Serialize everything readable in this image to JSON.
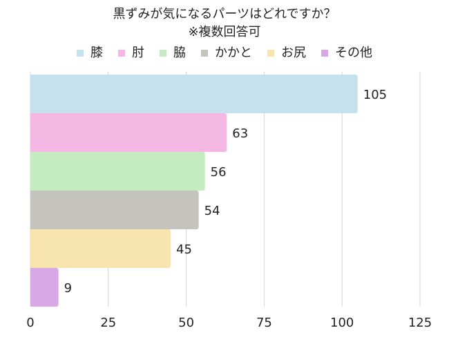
{
  "chart_data": {
    "type": "bar",
    "orientation": "horizontal",
    "title_lines": [
      "黒ずみが気になるパーツはどれですか？",
      "※複数回答可"
    ],
    "categories": [
      "膝",
      "肘",
      "脇",
      "かかと",
      "お尻",
      "その他"
    ],
    "values": [
      105,
      63,
      56,
      54,
      45,
      9
    ],
    "colors": [
      "#c5e1ee",
      "#f4b6e3",
      "#c4ecc0",
      "#c4c4bd",
      "#f8e4ae",
      "#d8a8e6"
    ],
    "xlim": [
      0,
      125
    ],
    "x_ticks": [
      0,
      25,
      50,
      75,
      100,
      125
    ],
    "grid": true,
    "legend_position": "top",
    "data_labels": true
  }
}
